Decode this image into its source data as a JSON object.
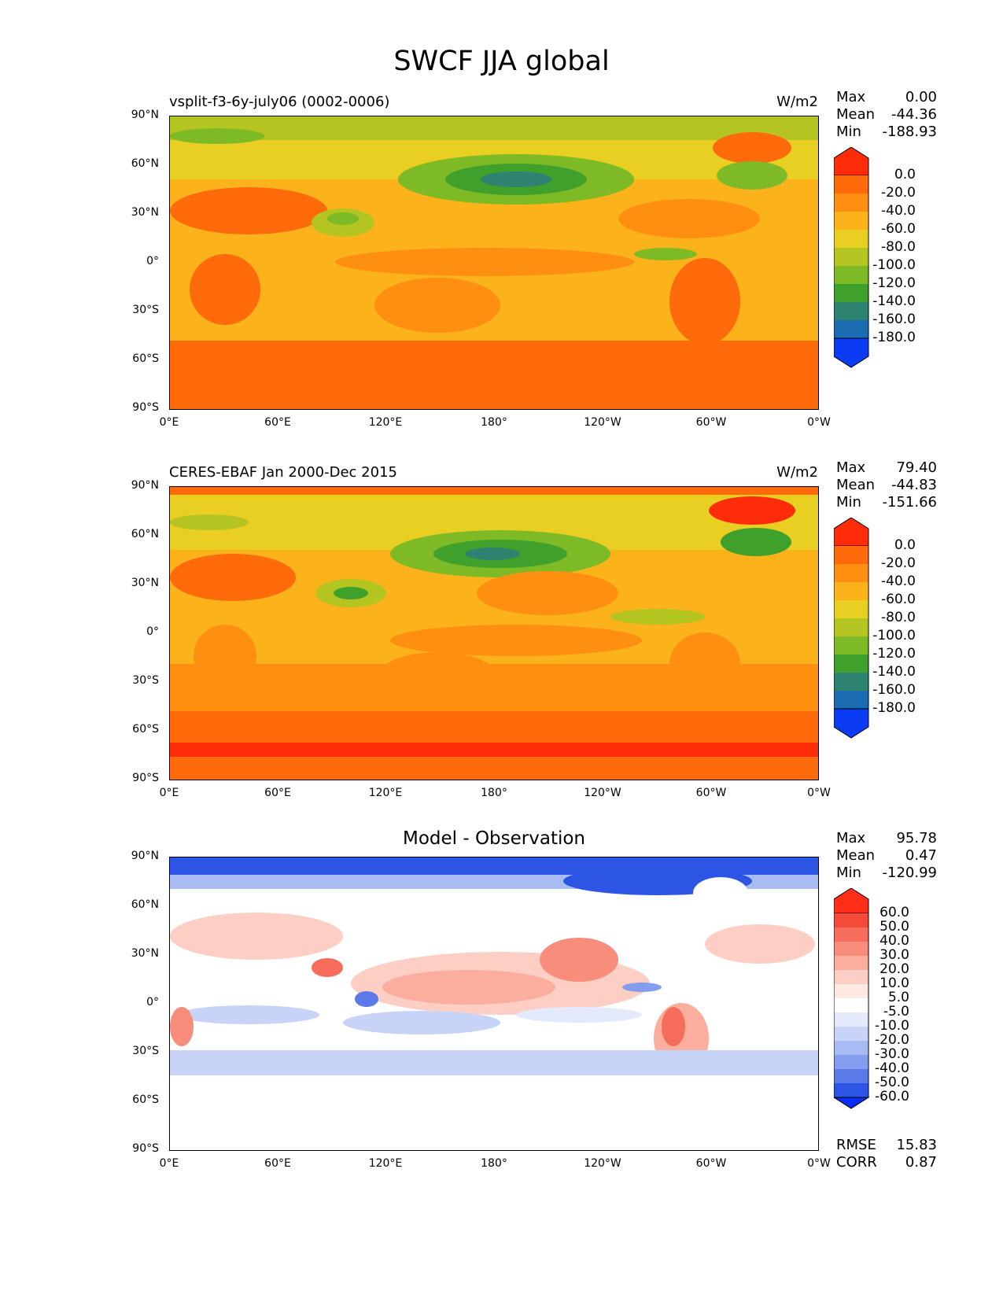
{
  "title": "SWCF JJA global",
  "lat_ticks": [
    "90°N",
    "60°N",
    "30°N",
    "0°",
    "30°S",
    "60°S",
    "90°S"
  ],
  "lon_ticks": [
    "0°E",
    "60°E",
    "120°E",
    "180°",
    "120°W",
    "60°W",
    "0°W"
  ],
  "panels": [
    {
      "id": "model",
      "title": "vsplit-f3-6y-july06 (0002-0006)",
      "units": "W/m2",
      "stats": {
        "max_label": "Max",
        "max": "0.00",
        "mean_label": "Mean",
        "mean": "-44.36",
        "min_label": "Min",
        "min": "-188.93"
      },
      "colorbar_levels": [
        "0.0",
        "-20.0",
        "-40.0",
        "-60.0",
        "-80.0",
        "-100.0",
        "-120.0",
        "-140.0",
        "-160.0",
        "-180.0"
      ],
      "colorbar_colors": [
        "#ff2c0a",
        "#ff6a0a",
        "#ff8f10",
        "#fcb21a",
        "#e8cf22",
        "#b4c420",
        "#7dba26",
        "#40a02c",
        "#2e8270",
        "#1b6bb0",
        "#0b3cf4"
      ]
    },
    {
      "id": "obs",
      "title": "CERES-EBAF Jan 2000-Dec 2015",
      "units": "W/m2",
      "stats": {
        "max_label": "Max",
        "max": "79.40",
        "mean_label": "Mean",
        "mean": "-44.83",
        "min_label": "Min",
        "min": "-151.66"
      },
      "colorbar_levels": [
        "0.0",
        "-20.0",
        "-40.0",
        "-60.0",
        "-80.0",
        "-100.0",
        "-120.0",
        "-140.0",
        "-160.0",
        "-180.0"
      ],
      "colorbar_colors": [
        "#ff2c0a",
        "#ff6a0a",
        "#ff8f10",
        "#fcb21a",
        "#e8cf22",
        "#b4c420",
        "#7dba26",
        "#40a02c",
        "#2e8270",
        "#1b6bb0",
        "#0b3cf4"
      ]
    },
    {
      "id": "diff",
      "title": "Model - Observation",
      "units": "",
      "stats": {
        "max_label": "Max",
        "max": "95.78",
        "mean_label": "Mean",
        "mean": "0.47",
        "min_label": "Min",
        "min": "-120.99"
      },
      "colorbar_levels": [
        "60.0",
        "50.0",
        "40.0",
        "30.0",
        "20.0",
        "10.0",
        "5.0",
        "-5.0",
        "-10.0",
        "-20.0",
        "-30.0",
        "-40.0",
        "-50.0",
        "-60.0"
      ],
      "colorbar_colors": [
        "#ff2f17",
        "#f44a3a",
        "#f66e5b",
        "#f98d7c",
        "#fbad9e",
        "#fdcfc4",
        "#fde8e2",
        "#ffffff",
        "#e4e9fb",
        "#c8d3f8",
        "#a9bbf3",
        "#859dee",
        "#5b7ae8",
        "#2c55e5",
        "#0b2cf4"
      ],
      "rmse_label": "RMSE",
      "rmse": "15.83",
      "corr_label": "CORR",
      "corr": "0.87"
    }
  ]
}
